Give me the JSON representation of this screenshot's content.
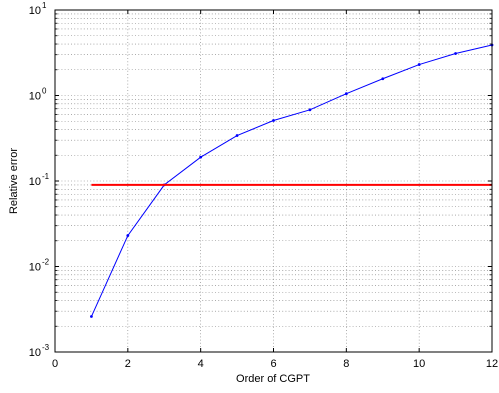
{
  "chart_data": {
    "type": "line",
    "title": "",
    "xlabel": "Order of CGPT",
    "ylabel": "Relative error",
    "xlim": [
      0,
      12
    ],
    "ylim": [
      0.001,
      10
    ],
    "yscale": "log",
    "grid": true,
    "x_ticks": [
      0,
      2,
      4,
      6,
      8,
      10,
      12
    ],
    "x_tick_labels": [
      "0",
      "2",
      "4",
      "6",
      "8",
      "10",
      "12"
    ],
    "y_ticks": [
      0.001,
      0.01,
      0.1,
      1,
      10
    ],
    "y_tick_labels": [
      {
        "base": "10",
        "exp": "-3"
      },
      {
        "base": "10",
        "exp": "-2"
      },
      {
        "base": "10",
        "exp": "-1"
      },
      {
        "base": "10",
        "exp": "0"
      },
      {
        "base": "10",
        "exp": "1"
      }
    ],
    "series": [
      {
        "color": "#0000ff",
        "marker": "dot",
        "x": [
          1,
          2,
          3,
          4,
          5,
          6,
          7,
          8,
          9,
          10,
          11,
          12
        ],
        "y": [
          0.0026,
          0.023,
          0.09,
          0.19,
          0.34,
          0.51,
          0.68,
          1.05,
          1.57,
          2.3,
          3.1,
          3.9
        ]
      },
      {
        "color": "#ff0000",
        "marker": "none",
        "x": [
          1,
          12
        ],
        "y": [
          0.09,
          0.09
        ]
      }
    ]
  }
}
